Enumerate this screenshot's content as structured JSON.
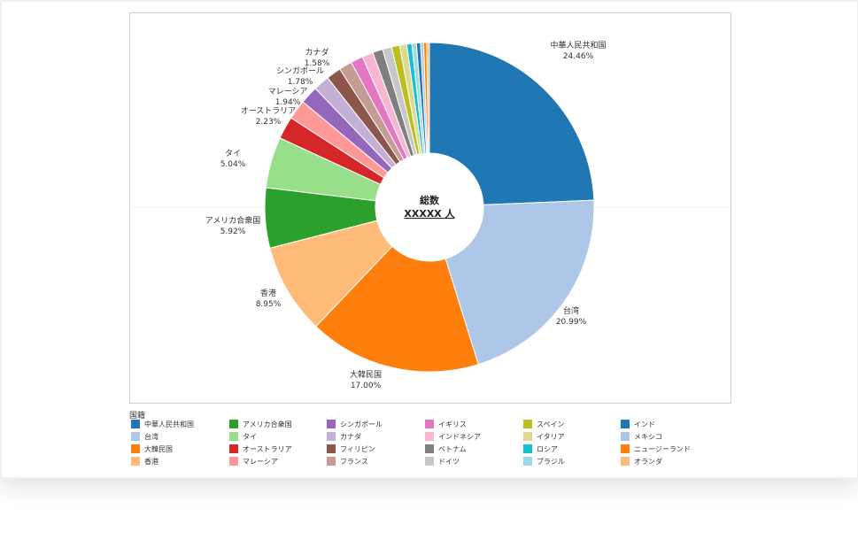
{
  "chart_data": {
    "type": "pie",
    "donut": true,
    "center_text": {
      "title": "総数",
      "value": "XXXXX 人"
    },
    "legend_title": "国籍",
    "slices": [
      {
        "label": "中華人民共和国",
        "value": 24.46,
        "display": "24.46%",
        "color": "#1f77b4"
      },
      {
        "label": "台湾",
        "value": 20.99,
        "display": "20.99%",
        "color": "#aec7e8"
      },
      {
        "label": "大韓民国",
        "value": 17.0,
        "display": "17.00%",
        "color": "#ff7f0e"
      },
      {
        "label": "香港",
        "value": 8.95,
        "display": "8.95%",
        "color": "#ffbb78"
      },
      {
        "label": "アメリカ合衆国",
        "value": 5.92,
        "display": "5.92%",
        "color": "#2ca02c"
      },
      {
        "label": "タイ",
        "value": 5.04,
        "display": "5.04%",
        "color": "#98df8a"
      },
      {
        "label": "オーストラリア",
        "value": 2.23,
        "display": "2.23%",
        "color": "#d62728"
      },
      {
        "label": "マレーシア",
        "value": 1.94,
        "display": "1.94%",
        "color": "#ff9896"
      },
      {
        "label": "シンガポール",
        "value": 1.78,
        "display": "1.78%",
        "color": "#9467bd"
      },
      {
        "label": "カナダ",
        "value": 1.58,
        "display": "1.58%",
        "color": "#c5b0d5"
      },
      {
        "label": "フィリピン",
        "value": 1.45,
        "display": "",
        "color": "#8c564b"
      },
      {
        "label": "フランス",
        "value": 1.3,
        "display": "",
        "color": "#c49c94"
      },
      {
        "label": "イギリス",
        "value": 1.2,
        "display": "",
        "color": "#e377c2"
      },
      {
        "label": "インドネシア",
        "value": 1.1,
        "display": "",
        "color": "#f7b6d2"
      },
      {
        "label": "ベトナム",
        "value": 1.0,
        "display": "",
        "color": "#7f7f7f"
      },
      {
        "label": "ドイツ",
        "value": 0.9,
        "display": "",
        "color": "#c7c7c7"
      },
      {
        "label": "スペイン",
        "value": 0.8,
        "display": "",
        "color": "#bcbd22"
      },
      {
        "label": "イタリア",
        "value": 0.7,
        "display": "",
        "color": "#dbdb8d"
      },
      {
        "label": "ロシア",
        "value": 0.5,
        "display": "",
        "color": "#17becf"
      },
      {
        "label": "ブラジル",
        "value": 0.45,
        "display": "",
        "color": "#9edae5"
      },
      {
        "label": "インド",
        "value": 0.4,
        "display": "",
        "color": "#1f77b4"
      },
      {
        "label": "メキシコ",
        "value": 0.3,
        "display": "",
        "color": "#aec7e8"
      },
      {
        "label": "ニュージーランド",
        "value": 0.3,
        "display": "",
        "color": "#ff7f0e"
      },
      {
        "label": "オランダ",
        "value": 0.27,
        "display": "",
        "color": "#ffbb78"
      }
    ],
    "legend": [
      [
        "中華人民共和国",
        "アメリカ合衆国",
        "シンガポール",
        "イギリス",
        "スペイン",
        "インド"
      ],
      [
        "台湾",
        "タイ",
        "カナダ",
        "インドネシア",
        "イタリア",
        "メキシコ"
      ],
      [
        "大韓民国",
        "オーストラリア",
        "フィリピン",
        "ベトナム",
        "ロシア",
        "ニュージーランド"
      ],
      [
        "香港",
        "マレーシア",
        "フランス",
        "ドイツ",
        "ブラジル",
        "オランダ"
      ]
    ]
  }
}
